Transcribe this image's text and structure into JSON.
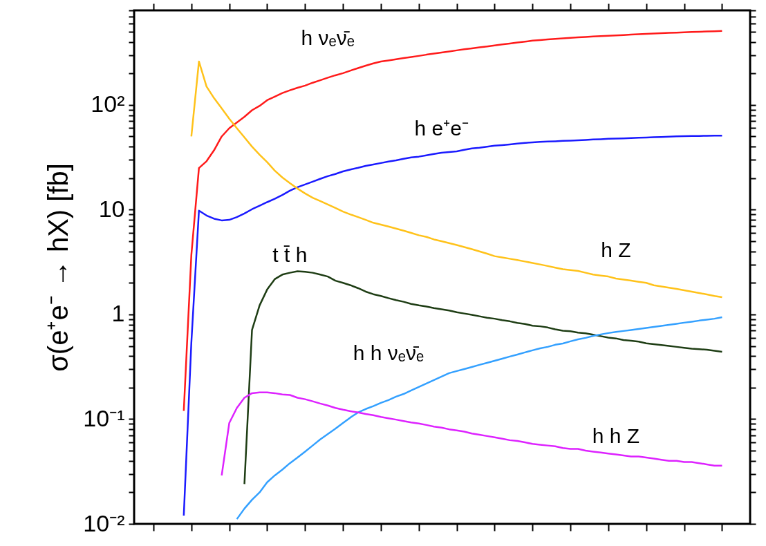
{
  "chart_data": {
    "type": "line",
    "ylabel": "σ(e⁺e⁻ → hX) [fb]",
    "categories": [
      null,
      null,
      null,
      null,
      null,
      null,
      null,
      null,
      null,
      null,
      null,
      null,
      null,
      null,
      null,
      null,
      null,
      null,
      null,
      null,
      null,
      null,
      null,
      null,
      null,
      null,
      null,
      null,
      null,
      null,
      null,
      null,
      null,
      null,
      null,
      null,
      null,
      null,
      null,
      null,
      null,
      null,
      null,
      null,
      null,
      null,
      null,
      null,
      null,
      null,
      null,
      null,
      null,
      null,
      null,
      null,
      null,
      null,
      null,
      null,
      null,
      null,
      null,
      null,
      null,
      null,
      null,
      null,
      null,
      null,
      null,
      null,
      null,
      null,
      null,
      null
    ],
    "series": [
      {
        "name": "h νₑν̄ₑ",
        "color": "#ff1a1a",
        "values": [
          null,
          null,
          null,
          null,
          0.12,
          3.7,
          25,
          29,
          37,
          50,
          60,
          68,
          77,
          89,
          98,
          111,
          120,
          130,
          138,
          146,
          153,
          163,
          172,
          182,
          192,
          201,
          213,
          225,
          237,
          249,
          260,
          266,
          273,
          280,
          287,
          294,
          302,
          309,
          317,
          324,
          332,
          340,
          347,
          355,
          362,
          370,
          378,
          386,
          394,
          402,
          411,
          416,
          422,
          427,
          432,
          438,
          442,
          446,
          450,
          454,
          457,
          461,
          465,
          470,
          474,
          478,
          481,
          484,
          488,
          491,
          494,
          497,
          500,
          503,
          506,
          509
        ]
      },
      {
        "name": "h e⁺e⁻",
        "color": "#1a1aff",
        "values": [
          null,
          null,
          null,
          null,
          0.012,
          0.54,
          9.8,
          8.8,
          8.2,
          7.9,
          8.0,
          8.5,
          9.2,
          10.1,
          10.9,
          11.8,
          12.7,
          13.8,
          15.2,
          16.4,
          17.4,
          18.5,
          19.7,
          20.9,
          21.9,
          23.2,
          24.2,
          25.1,
          26.2,
          27,
          27.9,
          28.8,
          29.6,
          30.6,
          31.6,
          32.1,
          33,
          34,
          35,
          35.5,
          36.1,
          37.3,
          38.4,
          39,
          40,
          40.8,
          41.4,
          42,
          42.7,
          43.4,
          44,
          44.4,
          44.7,
          45,
          45.4,
          45.7,
          46,
          46.4,
          46.8,
          47.1,
          47.5,
          47.7,
          48,
          48.3,
          48.6,
          48.9,
          49.2,
          49.5,
          49.8,
          50.1,
          50.4,
          50.5,
          50.6,
          50.8,
          50.9,
          51
        ]
      },
      {
        "name": "h Z",
        "color": "#ffc21a",
        "values": [
          null,
          null,
          null,
          null,
          null,
          50,
          260,
          150,
          116,
          93,
          74,
          60,
          49,
          40,
          33.5,
          28.4,
          23.6,
          20.3,
          17.9,
          15.9,
          14.3,
          13,
          12.1,
          11.2,
          10.4,
          9.6,
          9,
          8.5,
          8,
          7.5,
          7.2,
          6.9,
          6.6,
          6.3,
          6,
          5.7,
          5.5,
          5.2,
          5,
          4.8,
          4.6,
          4.4,
          4.2,
          4,
          3.8,
          3.6,
          3.5,
          3.4,
          3.3,
          3.2,
          3.1,
          3,
          2.9,
          2.8,
          2.7,
          2.65,
          2.6,
          2.5,
          2.4,
          2.35,
          2.3,
          2.2,
          2.15,
          2.1,
          2.05,
          2,
          1.9,
          1.85,
          1.8,
          1.75,
          1.7,
          1.65,
          1.6,
          1.55,
          1.5,
          1.46
        ]
      },
      {
        "name": "t t̄ h",
        "color": "#1e3d14",
        "values": [
          null,
          null,
          null,
          null,
          null,
          null,
          null,
          null,
          null,
          null,
          null,
          null,
          0.024,
          0.71,
          1.22,
          1.73,
          2.17,
          2.4,
          2.5,
          2.58,
          2.55,
          2.5,
          2.4,
          2.3,
          2.1,
          2,
          1.9,
          1.78,
          1.65,
          1.56,
          1.5,
          1.43,
          1.37,
          1.32,
          1.26,
          1.22,
          1.19,
          1.15,
          1.12,
          1.09,
          1.05,
          1.02,
          0.99,
          0.96,
          0.93,
          0.91,
          0.88,
          0.86,
          0.83,
          0.81,
          0.78,
          0.77,
          0.75,
          0.72,
          0.7,
          0.69,
          0.67,
          0.66,
          0.64,
          0.62,
          0.6,
          0.59,
          0.57,
          0.56,
          0.55,
          0.53,
          0.52,
          0.51,
          0.5,
          0.49,
          0.48,
          0.47,
          0.465,
          0.46,
          0.45,
          0.44
        ]
      },
      {
        "name": "h h νₑν̄ₑ",
        "color": "#33a0ff",
        "values": [
          null,
          null,
          null,
          null,
          null,
          null,
          null,
          null,
          null,
          null,
          null,
          0.0111,
          0.014,
          0.017,
          0.02,
          0.025,
          0.029,
          0.033,
          0.038,
          0.043,
          0.049,
          0.056,
          0.064,
          0.072,
          0.081,
          0.092,
          0.104,
          0.116,
          0.125,
          0.133,
          0.143,
          0.152,
          0.164,
          0.174,
          0.188,
          0.203,
          0.219,
          0.236,
          0.255,
          0.275,
          0.288,
          0.301,
          0.315,
          0.33,
          0.345,
          0.361,
          0.378,
          0.396,
          0.414,
          0.434,
          0.454,
          0.475,
          0.49,
          0.513,
          0.528,
          0.553,
          0.578,
          0.597,
          0.624,
          0.644,
          0.664,
          0.68,
          0.695,
          0.71,
          0.726,
          0.743,
          0.76,
          0.778,
          0.796,
          0.815,
          0.834,
          0.853,
          0.873,
          0.89,
          0.91,
          0.94
        ]
      },
      {
        "name": "h h Z",
        "color": "#dd22ff",
        "values": [
          null,
          null,
          null,
          null,
          null,
          null,
          null,
          null,
          null,
          0.029,
          0.092,
          0.128,
          0.16,
          0.177,
          0.18,
          0.18,
          0.177,
          0.172,
          0.17,
          0.16,
          0.155,
          0.148,
          0.141,
          0.135,
          0.128,
          0.123,
          0.119,
          0.116,
          0.112,
          0.109,
          0.105,
          0.102,
          0.099,
          0.096,
          0.093,
          0.091,
          0.088,
          0.085,
          0.083,
          0.08,
          0.078,
          0.076,
          0.073,
          0.071,
          0.069,
          0.067,
          0.065,
          0.063,
          0.062,
          0.06,
          0.058,
          0.057,
          0.056,
          0.055,
          0.053,
          0.052,
          0.052,
          0.05,
          0.049,
          0.048,
          0.047,
          0.046,
          0.045,
          0.044,
          0.044,
          0.043,
          0.042,
          0.041,
          0.04,
          0.04,
          0.039,
          0.039,
          0.038,
          0.037,
          0.036,
          0.036
        ]
      }
    ],
    "log": true,
    "ylim": [
      0.01,
      800
    ],
    "yticks": [
      {
        "value": 0.01,
        "label": "10⁻²"
      },
      {
        "value": 0.1,
        "label": "10⁻¹"
      },
      1,
      10,
      {
        "value": 100,
        "label": "10²"
      }
    ],
    "tick_labels": "y",
    "grid": false,
    "line_style": "solid"
  }
}
